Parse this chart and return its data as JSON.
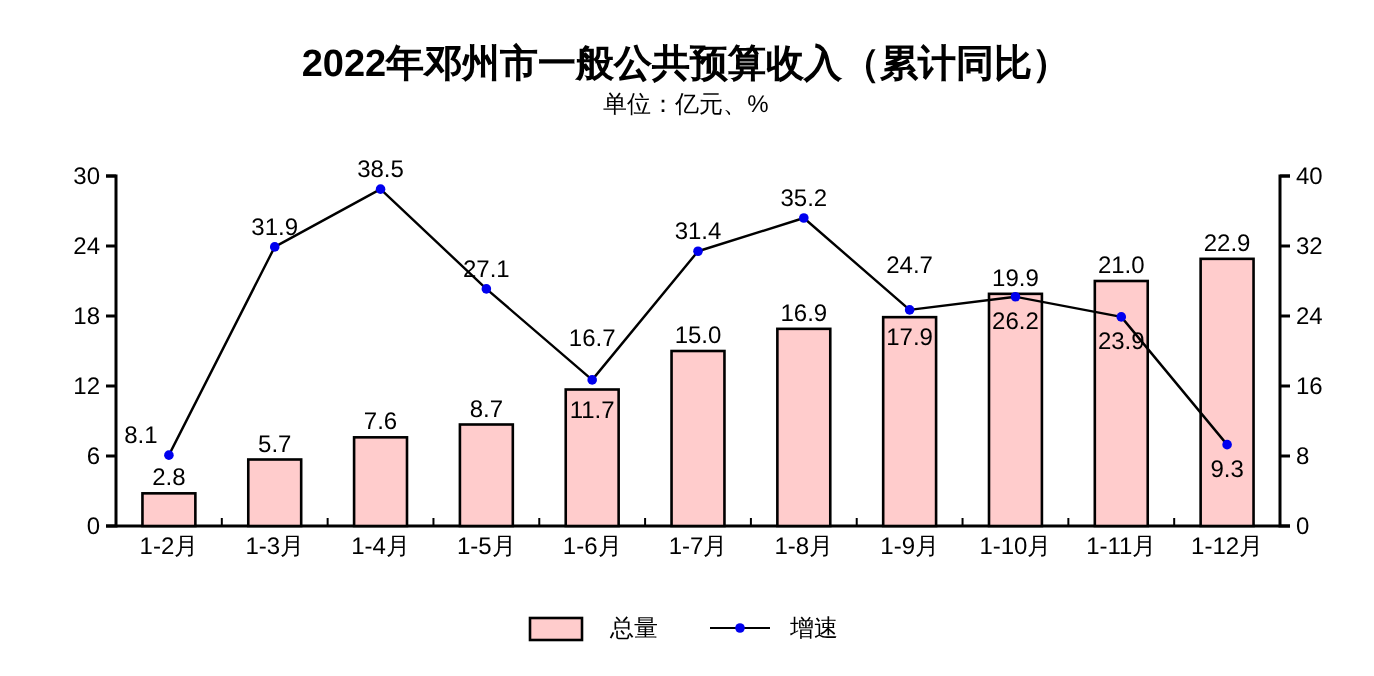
{
  "chart_data": {
    "type": "bar",
    "title": "2022年邓州市一般公共预算收入（累计同比）",
    "subtitle": "单位：亿元、%",
    "categories": [
      "1-2月",
      "1-3月",
      "1-4月",
      "1-5月",
      "1-6月",
      "1-7月",
      "1-8月",
      "1-9月",
      "1-10月",
      "1-11月",
      "1-12月"
    ],
    "series": [
      {
        "name": "总量",
        "color": "#ffcccc",
        "values": [
          2.8,
          5.7,
          7.6,
          8.7,
          11.7,
          15.0,
          16.9,
          17.9,
          19.9,
          21.0,
          22.9
        ],
        "value_labels": [
          "2.8",
          "5.7",
          "7.6",
          "8.7",
          "11.7",
          "15.0",
          "16.9",
          "17.9",
          "19.9",
          "21.0",
          "22.9"
        ]
      },
      {
        "name": "增速",
        "type": "line",
        "axis": "y2",
        "color": "#000000",
        "values": [
          8.1,
          31.9,
          38.5,
          27.1,
          16.7,
          31.4,
          35.2,
          24.7,
          26.2,
          23.9,
          9.3
        ]
      }
    ],
    "ylim": [
      0,
      30
    ],
    "yticks": [
      0,
      6,
      12,
      18,
      24,
      30
    ],
    "y2lim": [
      0,
      40
    ],
    "y2ticks": [
      0,
      8,
      16,
      24,
      32,
      40
    ],
    "data_labels": true,
    "marker": "circle",
    "legend": "bottom",
    "grid": false
  }
}
